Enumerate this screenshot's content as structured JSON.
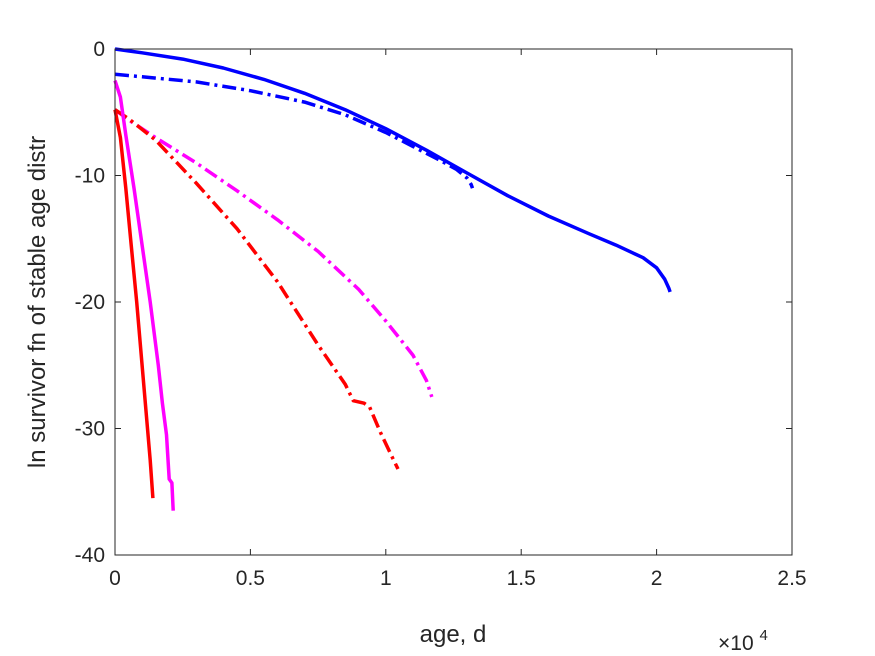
{
  "chart_data": {
    "type": "line",
    "title": "",
    "xlabel": "age, d",
    "ylabel": "ln survivor fn of stable age distr",
    "x_exponent_label": {
      "base": "×10",
      "exponent": "4"
    },
    "xlim": [
      0,
      2.5
    ],
    "ylim": [
      -40,
      0
    ],
    "x_ticks": [
      0,
      0.5,
      1,
      1.5,
      2,
      2.5
    ],
    "x_tick_labels": [
      "0",
      "0.5",
      "1",
      "1.5",
      "2",
      "2.5"
    ],
    "y_ticks": [
      0,
      -10,
      -20,
      -30,
      -40
    ],
    "y_tick_labels": [
      "0",
      "-10",
      "-20",
      "-30",
      "-40"
    ],
    "grid": false,
    "legend": "none",
    "series": [
      {
        "color": "#0000ff",
        "style": "solid",
        "x": [
          0,
          0.1,
          0.25,
          0.4,
          0.55,
          0.7,
          0.85,
          1.0,
          1.15,
          1.3,
          1.45,
          1.6,
          1.75,
          1.85,
          1.95,
          2.0,
          2.03,
          2.045,
          2.05
        ],
        "y": [
          0,
          -0.3,
          -0.8,
          -1.5,
          -2.4,
          -3.5,
          -4.8,
          -6.3,
          -8.0,
          -9.8,
          -11.6,
          -13.2,
          -14.6,
          -15.5,
          -16.5,
          -17.3,
          -18.2,
          -18.9,
          -19.2
        ]
      },
      {
        "color": "#0000ff",
        "style": "dashdot",
        "x": [
          0,
          0.1,
          0.3,
          0.5,
          0.7,
          0.85,
          1.0,
          1.1,
          1.2,
          1.26,
          1.3,
          1.315,
          1.32
        ],
        "y": [
          -2.0,
          -2.2,
          -2.6,
          -3.3,
          -4.2,
          -5.2,
          -6.6,
          -7.7,
          -8.8,
          -9.5,
          -10.2,
          -10.7,
          -11.0
        ]
      },
      {
        "color": "#ff00ff",
        "style": "dashdot",
        "x": [
          0,
          0.05,
          0.15,
          0.3,
          0.45,
          0.6,
          0.75,
          0.9,
          1.0,
          1.1,
          1.15,
          1.17
        ],
        "y": [
          -4.8,
          -5.6,
          -7.0,
          -9.0,
          -11.2,
          -13.5,
          -16.0,
          -19.0,
          -21.5,
          -24.2,
          -26.2,
          -27.5
        ]
      },
      {
        "color": "#ff0000",
        "style": "dashdot",
        "x": [
          0,
          0.05,
          0.15,
          0.3,
          0.45,
          0.6,
          0.75,
          0.85,
          0.88,
          0.92,
          0.94,
          0.98,
          1.02,
          1.045
        ],
        "y": [
          -4.8,
          -5.5,
          -7.2,
          -10.6,
          -14.2,
          -18.4,
          -23.4,
          -26.5,
          -27.8,
          -28.0,
          -28.3,
          -30.3,
          -32.1,
          -33.2
        ]
      },
      {
        "color": "#ff00ff",
        "style": "solid",
        "x": [
          0,
          0.02,
          0.04,
          0.07,
          0.1,
          0.13,
          0.16,
          0.175,
          0.19,
          0.2,
          0.21,
          0.215
        ],
        "y": [
          -2.5,
          -3.8,
          -6.8,
          -11.0,
          -15.5,
          -20.0,
          -25.0,
          -28.0,
          -30.5,
          -34.0,
          -34.3,
          -36.5
        ]
      },
      {
        "color": "#ff0000",
        "style": "solid",
        "x": [
          0,
          0.02,
          0.04,
          0.06,
          0.08,
          0.1,
          0.12,
          0.13,
          0.14
        ],
        "y": [
          -4.8,
          -7.0,
          -11.0,
          -15.5,
          -20.0,
          -25.0,
          -30.0,
          -32.5,
          -35.5
        ]
      }
    ]
  }
}
